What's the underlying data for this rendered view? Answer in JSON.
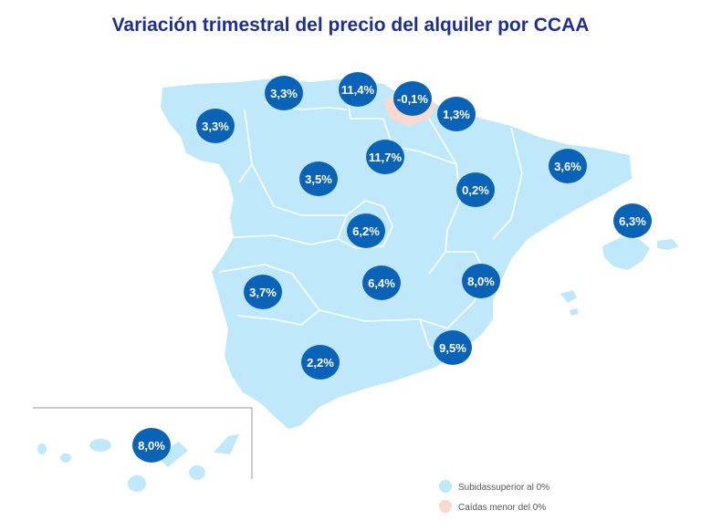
{
  "title": "Variación trimestral del precio del alquiler por CCAA",
  "colors": {
    "title": "#1f2f8f",
    "land_increase": "#bfe9fb",
    "land_decrease": "#fbd9cf",
    "bubble": "#0b63b8",
    "border": "#ffffff"
  },
  "regions": [
    {
      "id": "galicia",
      "value": "3,3%"
    },
    {
      "id": "asturias",
      "value": "3,3%"
    },
    {
      "id": "cantabria",
      "value": "11,4%"
    },
    {
      "id": "pais-vasco",
      "value": "-0,1%"
    },
    {
      "id": "navarra",
      "value": "1,3%"
    },
    {
      "id": "la-rioja",
      "value": "11,7%"
    },
    {
      "id": "castilla-y-leon",
      "value": "3,5%"
    },
    {
      "id": "aragon",
      "value": "0,2%"
    },
    {
      "id": "cataluna",
      "value": "3,6%"
    },
    {
      "id": "baleares",
      "value": "6,3%"
    },
    {
      "id": "madrid",
      "value": "6,2%"
    },
    {
      "id": "extremadura",
      "value": "3,7%"
    },
    {
      "id": "castilla-la-mancha",
      "value": "6,4%"
    },
    {
      "id": "comunidad-valenciana",
      "value": "8,0%"
    },
    {
      "id": "murcia",
      "value": "9,5%"
    },
    {
      "id": "andalucia",
      "value": "2,2%"
    },
    {
      "id": "canarias",
      "value": "8,0%"
    }
  ],
  "legend": [
    {
      "label": "Subidassuperior al 0%",
      "color": "#bfe9fb"
    },
    {
      "label": "Caídas menor del 0%",
      "color": "#fbd9cf"
    }
  ]
}
